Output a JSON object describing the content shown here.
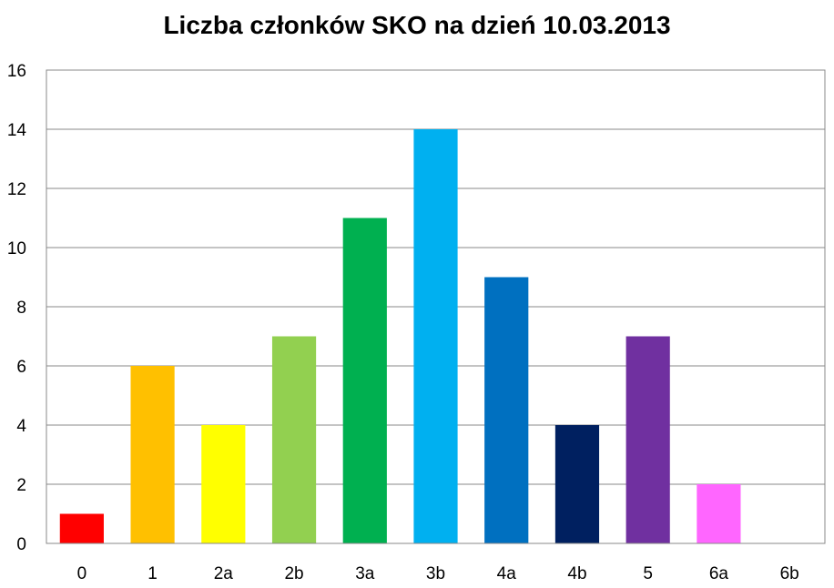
{
  "chart_data": {
    "type": "bar",
    "title": "Liczba członków SKO na dzień 10.03.2013",
    "xlabel": "",
    "ylabel": "",
    "categories": [
      "0",
      "1",
      "2a",
      "2b",
      "3a",
      "3b",
      "4a",
      "4b",
      "5",
      "6a",
      "6b"
    ],
    "values": [
      1,
      6,
      4,
      7,
      11,
      14,
      9,
      4,
      7,
      2,
      0
    ],
    "colors": [
      "#ff0000",
      "#ffc000",
      "#ffff00",
      "#92d050",
      "#00b050",
      "#00b0f0",
      "#0070c0",
      "#002060",
      "#7030a0",
      "#ff66ff",
      "#ffffff"
    ],
    "ylim": [
      0,
      16
    ],
    "yticks": [
      0,
      2,
      4,
      6,
      8,
      10,
      12,
      14,
      16
    ],
    "grid": true,
    "legend": "none"
  }
}
